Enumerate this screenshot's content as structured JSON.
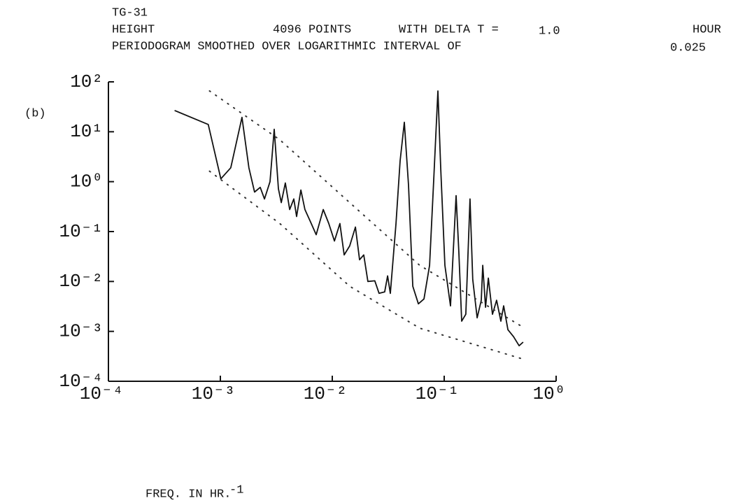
{
  "chart_data": {
    "type": "line",
    "header": {
      "id": "TG-31",
      "variable": "HEIGHT",
      "points": "4096 POINTS",
      "delta_label": "WITH DELTA T =",
      "delta_value": "1.0",
      "delta_unit": "HOUR",
      "smoothing_label": "PERIODOGRAM SMOOTHED OVER LOGARITHMIC INTERVAL OF",
      "smoothing_value": "0.025"
    },
    "panel_label": "(b)",
    "xlabel": "FREQ. IN HR.",
    "xlabel_exponent": "-1",
    "xscale": "log",
    "yscale": "log",
    "xlim": [
      0.0001,
      1
    ],
    "ylim": [
      0.0001,
      100
    ],
    "xticks": [
      {
        "value": 0.0001,
        "label": "10⁻⁴"
      },
      {
        "value": 0.001,
        "label": "10⁻³"
      },
      {
        "value": 0.01,
        "label": "10⁻²"
      },
      {
        "value": 0.1,
        "label": "10⁻¹"
      },
      {
        "value": 1,
        "label": "10⁰"
      }
    ],
    "yticks": [
      {
        "value": 0.0001,
        "label": "10⁻⁴"
      },
      {
        "value": 0.001,
        "label": "10⁻³"
      },
      {
        "value": 0.01,
        "label": "10⁻²"
      },
      {
        "value": 0.1,
        "label": "10⁻¹"
      },
      {
        "value": 1,
        "label": "10⁰"
      },
      {
        "value": 10,
        "label": "10¹"
      },
      {
        "value": 100,
        "label": "10²"
      }
    ],
    "series": [
      {
        "style": "solid",
        "color": "#111111",
        "x": [
          0.00039,
          0.00078,
          0.00101,
          0.00124,
          0.00156,
          0.0018,
          0.00202,
          0.00227,
          0.00248,
          0.00278,
          0.00303,
          0.0033,
          0.0035,
          0.00381,
          0.00416,
          0.00453,
          0.0048,
          0.00524,
          0.0057,
          0.0064,
          0.00718,
          0.0083,
          0.0093,
          0.01045,
          0.0117,
          0.01277,
          0.0143,
          0.0161,
          0.01753,
          0.0191,
          0.0208,
          0.024,
          0.0262,
          0.0294,
          0.0312,
          0.033,
          0.0371,
          0.0404,
          0.044,
          0.048,
          0.0524,
          0.0588,
          0.066,
          0.074,
          0.0805,
          0.0879,
          0.0931,
          0.1014,
          0.1138,
          0.1277,
          0.135,
          0.1432,
          0.156,
          0.17,
          0.18,
          0.197,
          0.2143,
          0.221,
          0.234,
          0.248,
          0.27,
          0.294,
          0.321,
          0.34,
          0.371,
          0.416,
          0.467,
          0.508
        ],
        "values": [
          26.7,
          14.0,
          1.14,
          1.9,
          19.4,
          1.9,
          0.62,
          0.77,
          0.45,
          1.0,
          11.2,
          0.72,
          0.38,
          0.94,
          0.276,
          0.45,
          0.2,
          0.68,
          0.276,
          0.155,
          0.0865,
          0.276,
          0.145,
          0.0647,
          0.145,
          0.034,
          0.0516,
          0.123,
          0.0272,
          0.034,
          0.01,
          0.0103,
          0.00578,
          0.00617,
          0.0129,
          0.00578,
          0.145,
          2.63,
          15.5,
          0.85,
          0.008,
          0.00356,
          0.00447,
          0.021,
          1.0,
          65.8,
          1.9,
          0.021,
          0.00324,
          0.525,
          0.04,
          0.0016,
          0.0022,
          0.45,
          0.011,
          0.00187,
          0.0042,
          0.021,
          0.00304,
          0.0117,
          0.0022,
          0.0042,
          0.0016,
          0.00324,
          0.00108,
          0.000785,
          0.000516,
          0.00061
        ]
      },
      {
        "style": "dotted",
        "color": "#333333",
        "x": [
          0.0008,
          0.0034,
          0.0143,
          0.0604,
          0.524
        ],
        "values": [
          65.8,
          6.9,
          0.38,
          0.021,
          0.00116
        ]
      },
      {
        "style": "dotted",
        "color": "#333333",
        "x": [
          0.0008,
          0.0034,
          0.0143,
          0.0604,
          0.524
        ],
        "values": [
          1.62,
          0.145,
          0.008,
          0.00116,
          0.000272
        ]
      }
    ]
  }
}
